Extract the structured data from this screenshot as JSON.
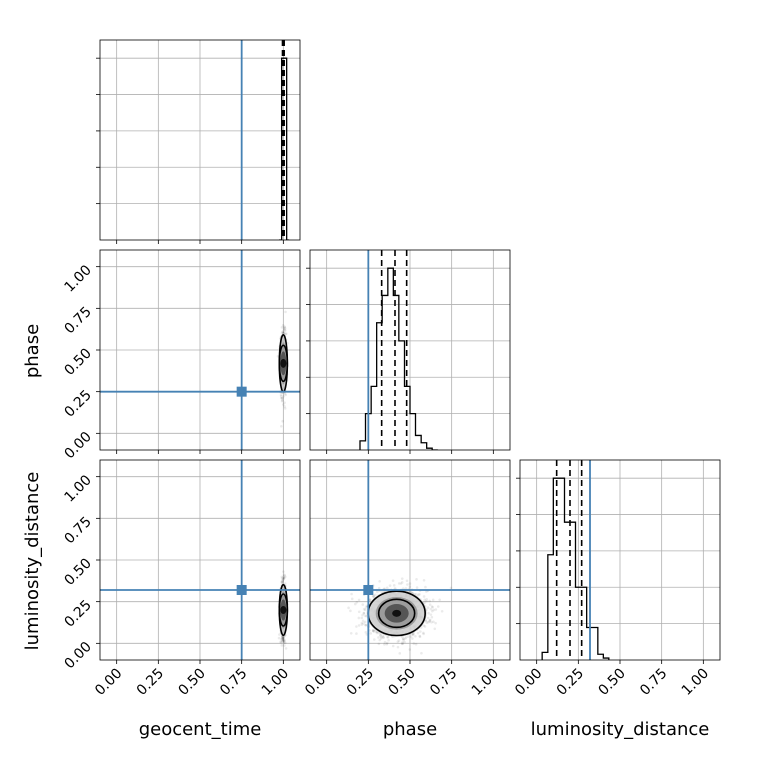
{
  "chart_data": {
    "type": "corner",
    "parameters": [
      "geocent_time",
      "phase",
      "luminosity_distance"
    ],
    "axis_range": [
      -0.1,
      1.1
    ],
    "ticks": [
      0.0,
      0.25,
      0.5,
      0.75,
      1.0
    ],
    "tick_labels": [
      "0.00",
      "0.25",
      "0.50",
      "0.75",
      "1.00"
    ],
    "grid": true,
    "colors": {
      "truth": "#4682b4",
      "hist": "#000000",
      "grid": "#b0b0b0"
    },
    "truths": {
      "geocent_time": 0.75,
      "phase": 0.25,
      "luminosity_distance": 0.32
    },
    "marginals": {
      "geocent_time": {
        "quantiles": [
          0.995,
          1.0,
          1.005
        ],
        "bin_edges": [
          0.975,
          0.99,
          1.005,
          1.02,
          1.035
        ],
        "counts": [
          0.0,
          1.0,
          1.0,
          0.0
        ]
      },
      "phase": {
        "quantiles": [
          0.33,
          0.41,
          0.48
        ],
        "bin_edges": [
          0.2,
          0.233,
          0.267,
          0.3,
          0.333,
          0.367,
          0.4,
          0.433,
          0.467,
          0.5,
          0.533,
          0.567,
          0.6,
          0.633,
          0.667
        ],
        "counts": [
          0.05,
          0.2,
          0.35,
          0.7,
          0.85,
          1.0,
          0.85,
          0.6,
          0.35,
          0.2,
          0.08,
          0.04,
          0.01,
          0.0
        ]
      },
      "luminosity_distance": {
        "quantiles": [
          0.12,
          0.2,
          0.27
        ],
        "bin_edges": [
          0.033,
          0.067,
          0.1,
          0.133,
          0.167,
          0.2,
          0.233,
          0.267,
          0.3,
          0.333,
          0.367,
          0.4,
          0.433
        ],
        "counts": [
          0.04,
          0.55,
          0.95,
          0.95,
          0.72,
          0.72,
          0.38,
          0.38,
          0.17,
          0.17,
          0.03,
          0.01
        ]
      }
    },
    "joint": {
      "phase_vs_geocent_time": {
        "x": "geocent_time",
        "y": "phase",
        "center": [
          1.0,
          0.42
        ],
        "spread": [
          0.008,
          0.09
        ],
        "samples": 900
      },
      "luminosity_distance_vs_geocent_time": {
        "x": "geocent_time",
        "y": "luminosity_distance",
        "center": [
          1.0,
          0.2
        ],
        "spread": [
          0.008,
          0.08
        ],
        "samples": 900
      },
      "luminosity_distance_vs_phase": {
        "x": "phase",
        "y": "luminosity_distance",
        "center": [
          0.42,
          0.18
        ],
        "spread": [
          0.09,
          0.07
        ],
        "samples": 1400
      }
    }
  }
}
